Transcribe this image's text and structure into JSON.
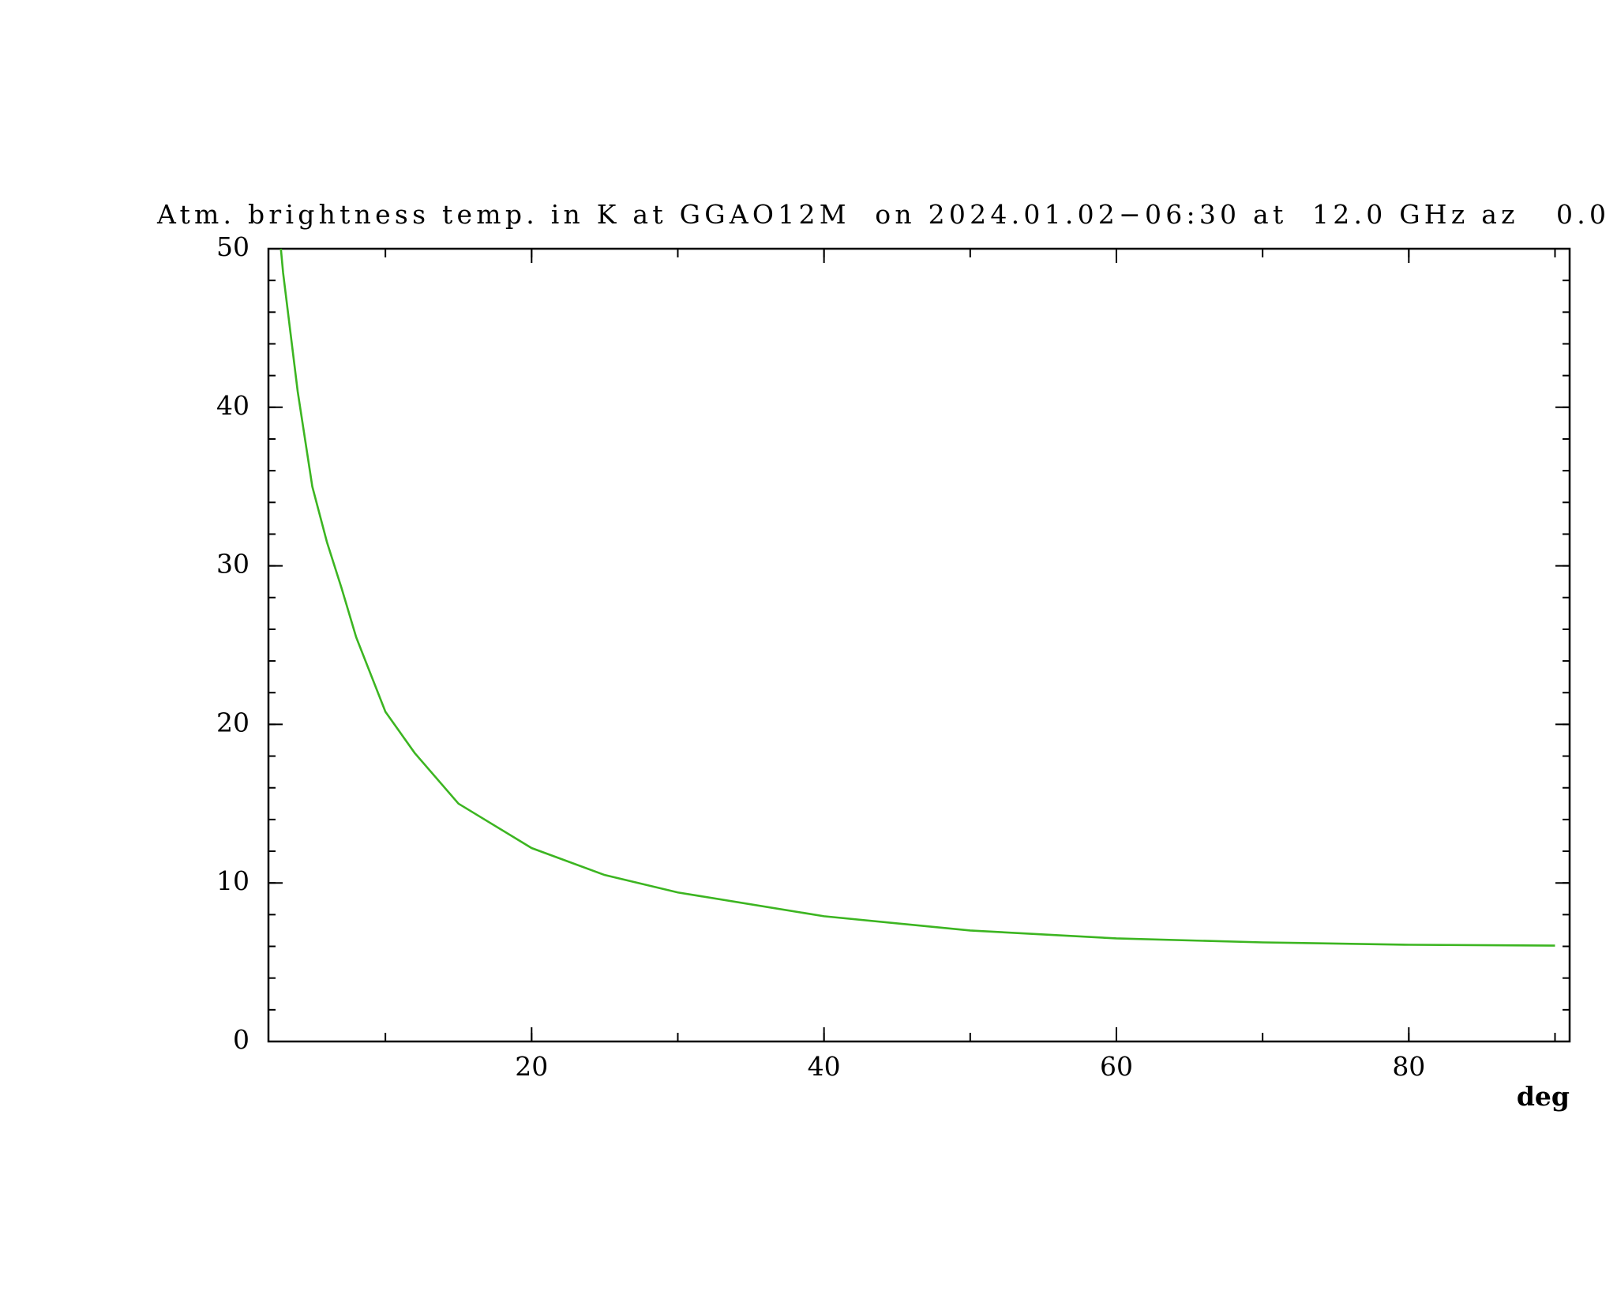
{
  "chart_data": {
    "type": "line",
    "title": "Atm. brightness temp. in K at GGAO12M  on 2024.01.02−06:30 at  12.0 GHz az   0.0",
    "x_label": "deg",
    "x": [
      2.85,
      3,
      4,
      5,
      6,
      7,
      8,
      10,
      12,
      15,
      20,
      25,
      30,
      40,
      50,
      60,
      70,
      80,
      90
    ],
    "series": [
      {
        "color": "#3cb521",
        "values": [
          50,
          48.5,
          41,
          35,
          31.5,
          28.6,
          25.5,
          20.8,
          18.2,
          15,
          12.2,
          10.5,
          9.4,
          7.9,
          7.0,
          6.5,
          6.25,
          6.1,
          6.05
        ]
      }
    ],
    "xlim": [
      2,
      91
    ],
    "xticks": [
      20,
      40,
      60,
      80
    ],
    "xminor_step": 10,
    "ylim": [
      0,
      50
    ],
    "yticks": [
      0,
      10,
      20,
      30,
      40,
      50
    ],
    "yminor_step": 2,
    "grid": false
  }
}
